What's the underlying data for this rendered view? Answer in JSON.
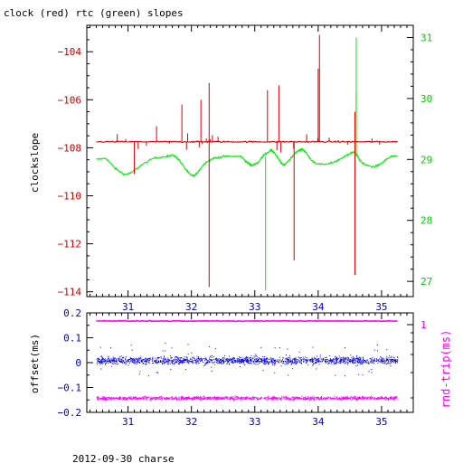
{
  "page": {
    "top_title": "clock (red) rtc (green) slopes",
    "footer": "2012-09-30 charse"
  },
  "colors": {
    "clock": "#dd0000",
    "rtc": "#00ee00",
    "offset": "#0000ee",
    "rtt": "#ff00ff",
    "axis_blue": "#0000cc"
  },
  "chart_data": [
    {
      "type": "line",
      "title": "clock (red) rtc (green) slopes",
      "xlim": [
        30.35,
        35.5
      ],
      "x_ticks": [
        31,
        32,
        33,
        34,
        35
      ],
      "ylabel": "clockslope",
      "ylim": [
        -114.2,
        -102.9
      ],
      "y_ticks": [
        -114,
        -112,
        -110,
        -108,
        -106,
        -104
      ],
      "y2lim": [
        26.75,
        31.2
      ],
      "y2_ticks": [
        27,
        28,
        29,
        30,
        31
      ],
      "series": [
        {
          "name": "clock (red)",
          "axis": "left",
          "baseline": -107.75,
          "x_range": [
            30.5,
            35.25
          ],
          "spikes": [
            {
              "x": 31.1,
              "y": -109.1
            },
            {
              "x": 31.45,
              "y": -107.1
            },
            {
              "x": 31.85,
              "y": -106.2
            },
            {
              "x": 32.15,
              "y": -106.0
            },
            {
              "x": 32.28,
              "y": -105.3
            },
            {
              "x": 32.28,
              "y": -113.8
            },
            {
              "x": 33.2,
              "y": -105.6
            },
            {
              "x": 33.38,
              "y": -105.4
            },
            {
              "x": 33.62,
              "y": -112.7
            },
            {
              "x": 34.0,
              "y": -104.7
            },
            {
              "x": 34.02,
              "y": -103.3
            },
            {
              "x": 34.58,
              "y": -113.3
            },
            {
              "x": 34.58,
              "y": -106.5
            }
          ]
        },
        {
          "name": "rtc (green)",
          "axis": "right",
          "points": [
            [
              30.5,
              29.0
            ],
            [
              30.65,
              29.02
            ],
            [
              30.8,
              28.85
            ],
            [
              30.95,
              28.75
            ],
            [
              31.05,
              28.78
            ],
            [
              31.2,
              28.9
            ],
            [
              31.4,
              29.02
            ],
            [
              31.6,
              29.05
            ],
            [
              31.72,
              29.07
            ],
            [
              31.8,
              29.0
            ],
            [
              31.9,
              28.85
            ],
            [
              31.98,
              28.75
            ],
            [
              32.05,
              28.73
            ],
            [
              32.12,
              28.82
            ],
            [
              32.22,
              28.95
            ],
            [
              32.35,
              29.02
            ],
            [
              32.5,
              29.05
            ],
            [
              32.65,
              29.05
            ],
            [
              32.78,
              29.05
            ],
            [
              32.88,
              28.95
            ],
            [
              32.95,
              28.9
            ],
            [
              33.05,
              28.95
            ],
            [
              33.15,
              29.08
            ],
            [
              33.25,
              29.15
            ],
            [
              33.3,
              29.12
            ],
            [
              33.38,
              29.0
            ],
            [
              33.45,
              28.9
            ],
            [
              33.55,
              29.0
            ],
            [
              33.65,
              29.12
            ],
            [
              33.75,
              29.17
            ],
            [
              33.8,
              29.12
            ],
            [
              33.9,
              28.98
            ],
            [
              34.0,
              28.92
            ],
            [
              34.15,
              28.92
            ],
            [
              34.3,
              28.98
            ],
            [
              34.42,
              29.05
            ],
            [
              34.5,
              29.1
            ],
            [
              34.58,
              29.12
            ],
            [
              34.65,
              29.0
            ],
            [
              34.72,
              28.92
            ],
            [
              34.85,
              28.88
            ],
            [
              34.95,
              28.9
            ],
            [
              35.05,
              28.98
            ],
            [
              35.15,
              29.05
            ],
            [
              35.25,
              29.05
            ]
          ],
          "spikes": [
            {
              "x": 33.17,
              "y": 26.85
            },
            {
              "x": 34.6,
              "y": 31.0
            },
            {
              "x": 34.6,
              "y": 30.1
            }
          ]
        }
      ]
    },
    {
      "type": "scatter",
      "xlim": [
        30.35,
        35.5
      ],
      "x_ticks": [
        31,
        32,
        33,
        34,
        35
      ],
      "ylabel": "offset(ms)",
      "ylim": [
        -0.2,
        0.2
      ],
      "y_ticks": [
        -0.2,
        -0.1,
        0,
        0.1,
        0.2
      ],
      "y2label": "rnd-trip(ms)",
      "y2_ticks": [
        1
      ],
      "series": [
        {
          "name": "offset(ms)",
          "axis": "left",
          "center": 0.01,
          "spread": 0.025,
          "x_range": [
            30.5,
            35.25
          ]
        },
        {
          "name": "rnd-trip(ms)",
          "axis": "right",
          "center": 1.08,
          "spread": 0.01,
          "x_range": [
            30.5,
            35.25
          ]
        },
        {
          "name": "rnd-trip(ms) lower band",
          "axis": "right",
          "center": 0.3,
          "spread": 0.03,
          "x_range": [
            30.5,
            35.25
          ]
        }
      ]
    }
  ]
}
